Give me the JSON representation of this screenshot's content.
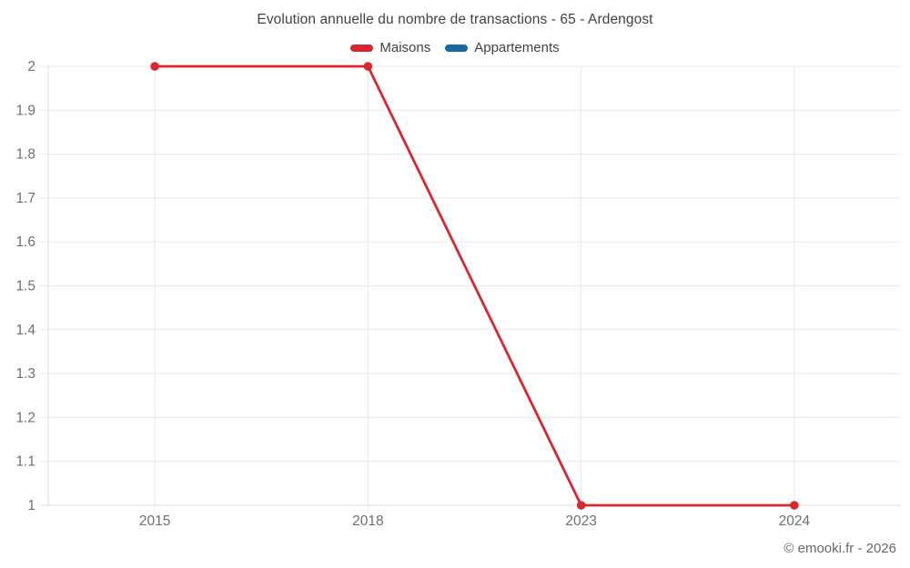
{
  "chart_data": {
    "type": "line",
    "title": "Evolution annuelle du nombre de transactions - 65 - Ardengost",
    "categories": [
      "2015",
      "2018",
      "2023",
      "2024"
    ],
    "series": [
      {
        "name": "Maisons",
        "color": "#d6282e",
        "values": [
          2,
          2,
          1,
          1
        ]
      },
      {
        "name": "Appartements",
        "color": "#1769a0",
        "values": []
      }
    ],
    "ylim": [
      1,
      2
    ],
    "y_ticks": {
      "values": [
        1,
        1.1,
        1.2,
        1.3,
        1.4,
        1.5,
        1.6,
        1.7,
        1.8,
        1.9,
        2
      ],
      "labels": [
        "1",
        "1.1",
        "1.2",
        "1.3",
        "1.4",
        "1.5",
        "1.6",
        "1.7",
        "1.8",
        "1.9",
        "2"
      ]
    },
    "grid": true,
    "legend_position": "top",
    "colors": {
      "grid_line": "#e9e9e9",
      "axis_line": "#dedede",
      "tick_label": "#6f6f6f",
      "title_text": "#424242"
    }
  },
  "footer": {
    "copyright": "© emooki.fr - 2026"
  }
}
